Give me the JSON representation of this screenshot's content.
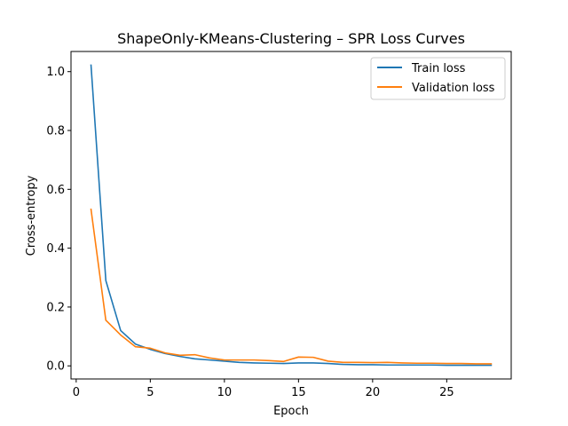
{
  "chart_data": {
    "type": "line",
    "title": "ShapeOnly-KMeans-Clustering – SPR Loss Curves",
    "xlabel": "Epoch",
    "ylabel": "Cross-entropy",
    "xlim": [
      -0.35,
      29.35
    ],
    "ylim": [
      -0.0445,
      1.0685
    ],
    "xticks": [
      0,
      5,
      10,
      15,
      20,
      25
    ],
    "xtick_labels": [
      "0",
      "5",
      "10",
      "15",
      "20",
      "25"
    ],
    "yticks": [
      0.0,
      0.2,
      0.4,
      0.6,
      0.8,
      1.0
    ],
    "ytick_labels": [
      "0.0",
      "0.2",
      "0.4",
      "0.6",
      "0.8",
      "1.0"
    ],
    "grid": false,
    "legend_position": "top-right",
    "x": [
      1,
      2,
      3,
      4,
      5,
      6,
      7,
      8,
      9,
      10,
      11,
      12,
      13,
      14,
      15,
      16,
      17,
      18,
      19,
      20,
      21,
      22,
      23,
      24,
      25,
      26,
      27,
      28
    ],
    "series": [
      {
        "name": "Train loss",
        "color": "#1f77b4",
        "values": [
          1.022,
          0.29,
          0.12,
          0.074,
          0.056,
          0.042,
          0.032,
          0.024,
          0.02,
          0.016,
          0.012,
          0.01,
          0.009,
          0.008,
          0.01,
          0.01,
          0.008,
          0.005,
          0.004,
          0.004,
          0.003,
          0.003,
          0.003,
          0.003,
          0.002,
          0.002,
          0.002,
          0.002
        ]
      },
      {
        "name": "Validation loss",
        "color": "#ff7f0e",
        "values": [
          0.532,
          0.155,
          0.105,
          0.065,
          0.06,
          0.044,
          0.036,
          0.038,
          0.027,
          0.02,
          0.02,
          0.02,
          0.018,
          0.015,
          0.03,
          0.029,
          0.016,
          0.012,
          0.012,
          0.011,
          0.012,
          0.01,
          0.009,
          0.009,
          0.008,
          0.008,
          0.007,
          0.007
        ]
      }
    ]
  }
}
